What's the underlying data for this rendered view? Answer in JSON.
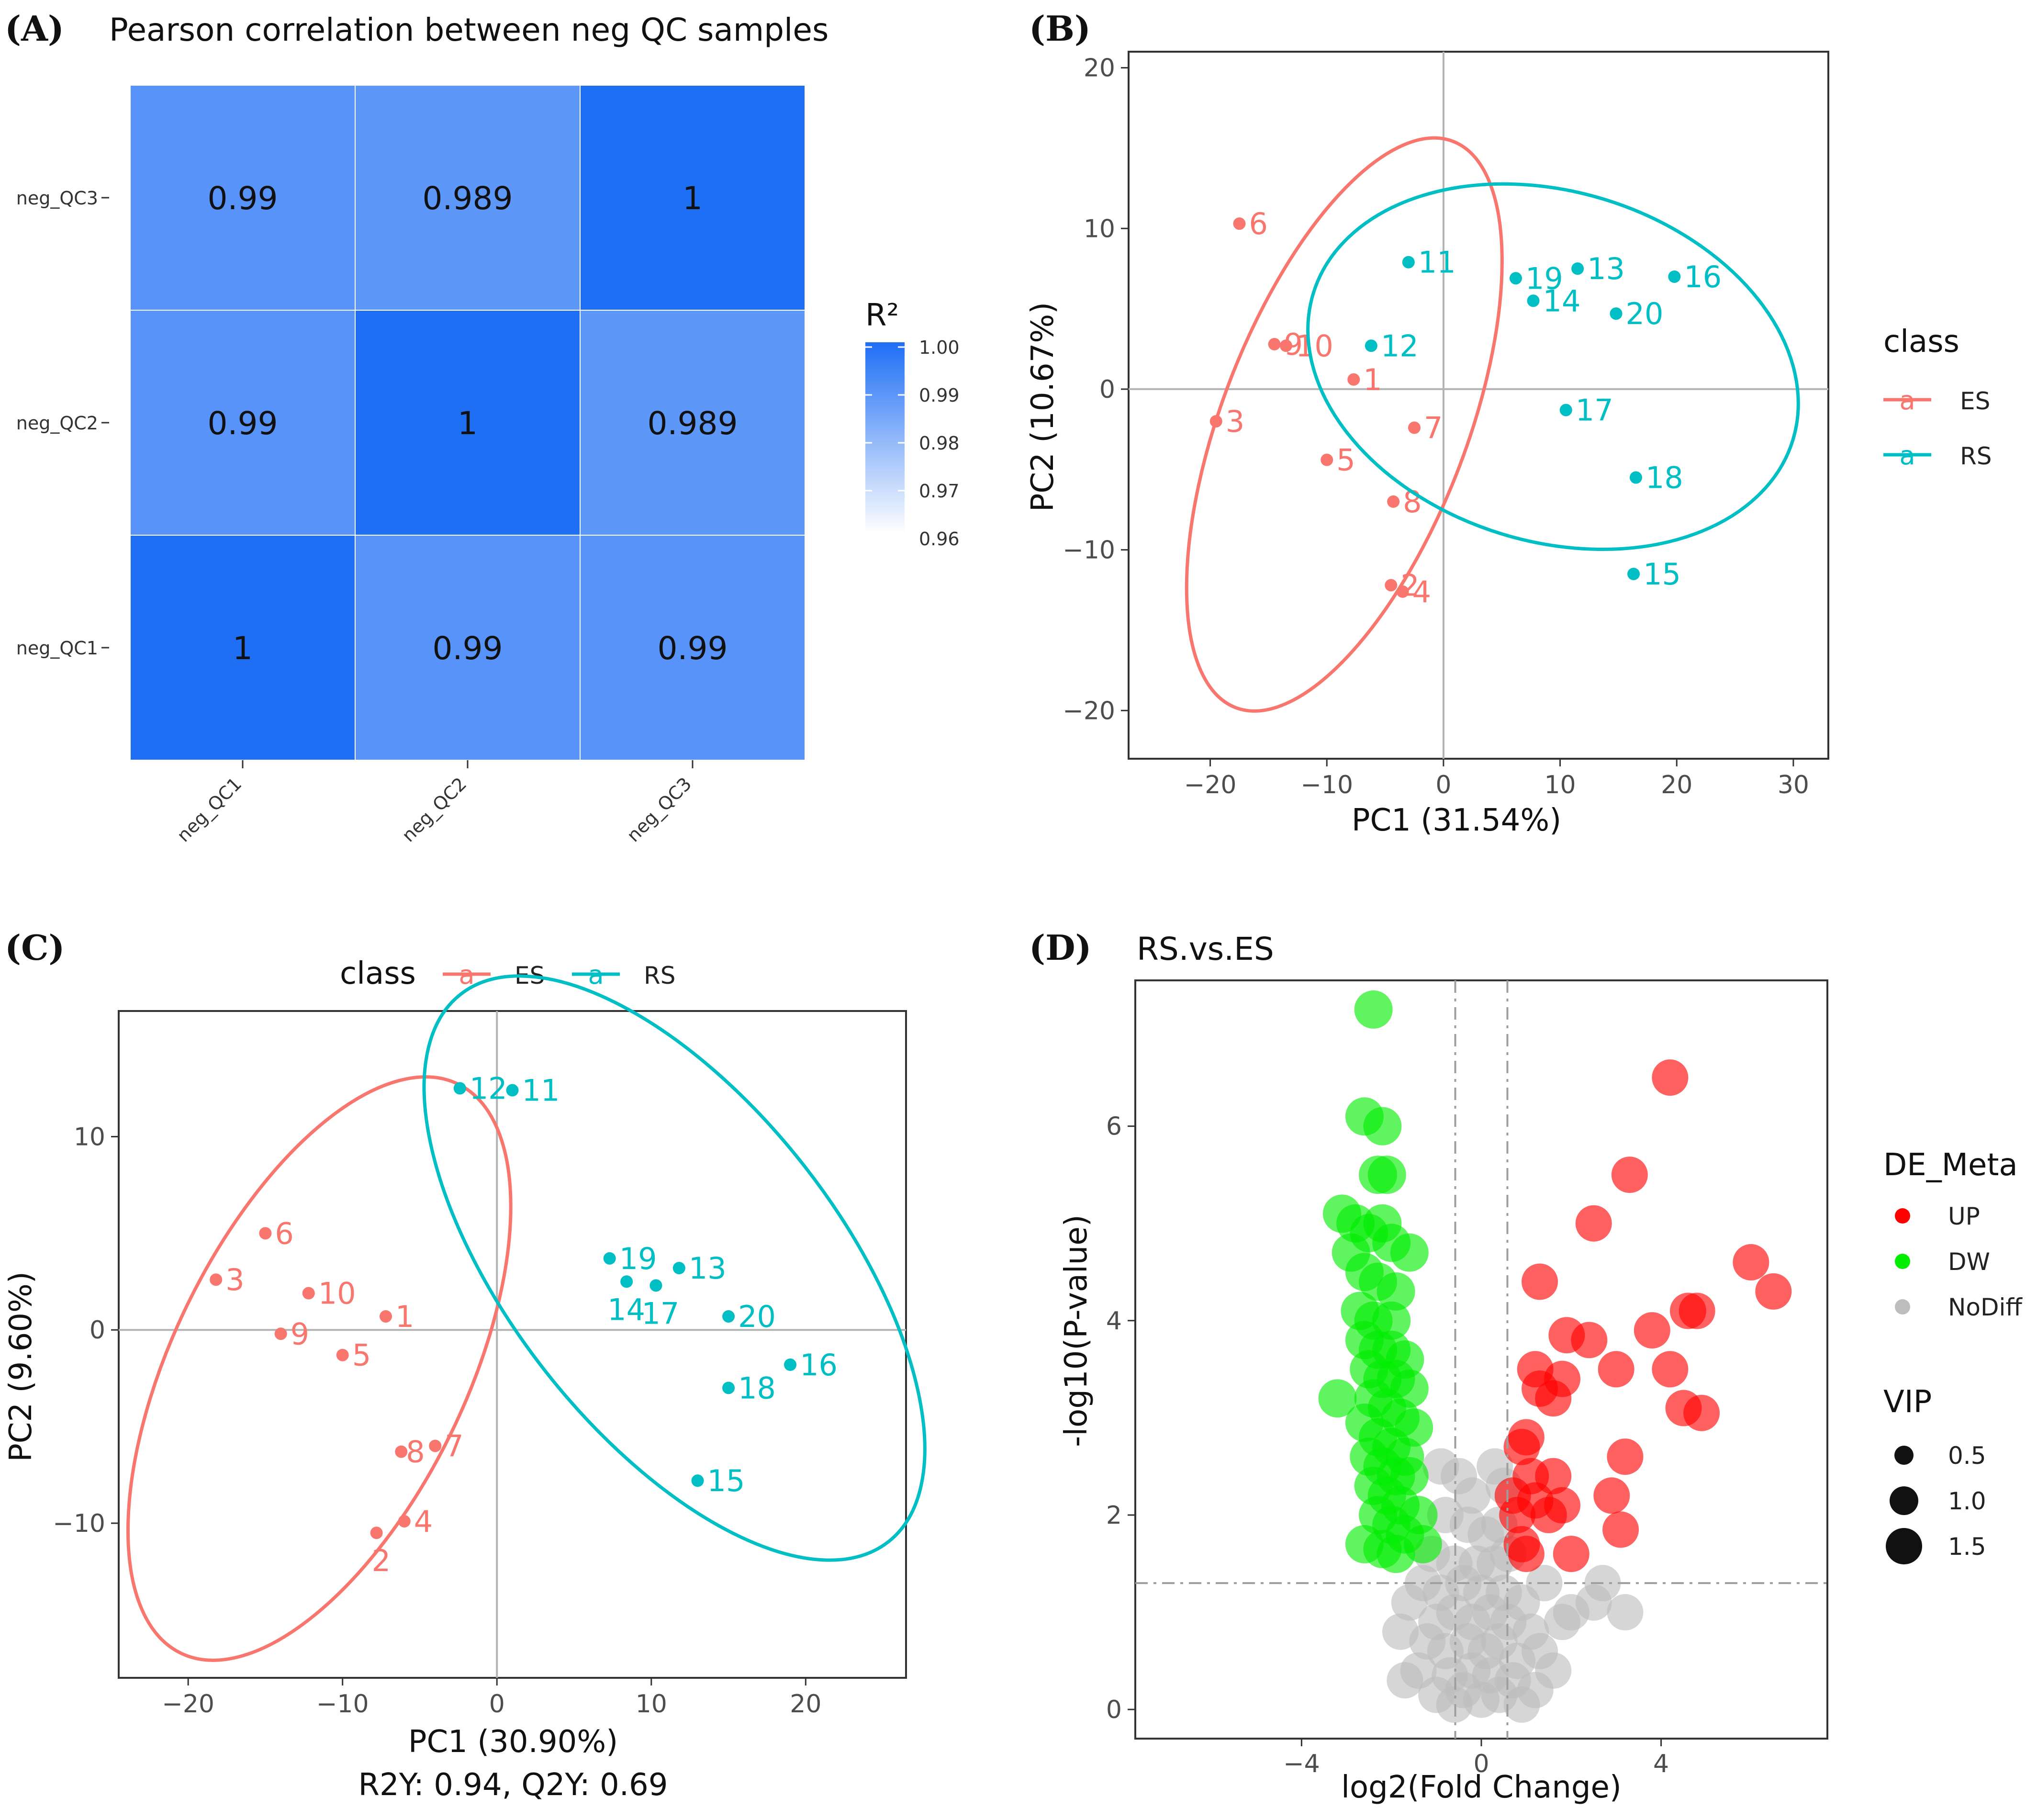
{
  "chart_data": [
    {
      "panel": "(A)",
      "type": "heatmap",
      "title": "Pearson correlation between neg QC samples",
      "rows": [
        "neg_QC1",
        "neg_QC2",
        "neg_QC3"
      ],
      "cols": [
        "neg_QC1",
        "neg_QC2",
        "neg_QC3"
      ],
      "values": [
        [
          1,
          0.99,
          0.99
        ],
        [
          0.99,
          1,
          0.989
        ],
        [
          0.99,
          0.989,
          1
        ]
      ],
      "value_labels": [
        [
          "1",
          "0.99",
          "0.99"
        ],
        [
          "0.99",
          "1",
          "0.989"
        ],
        [
          "0.99",
          "0.989",
          "1"
        ]
      ],
      "colorbar": {
        "title": "R²",
        "ticks": [
          "1.00",
          "0.99",
          "0.98",
          "0.97",
          "0.96"
        ],
        "low": "#ffffff",
        "high": "#1f6ff5"
      }
    },
    {
      "panel": "(B)",
      "type": "scatter",
      "xlabel": "PC1 (31.54%)",
      "ylabel": "PC2 (10.67%)",
      "xlim": [
        -27,
        33
      ],
      "ylim": [
        -23,
        21
      ],
      "xticks": [
        -20,
        -10,
        0,
        10,
        20,
        30
      ],
      "yticks": [
        -20,
        -10,
        0,
        10,
        20
      ],
      "legend": {
        "title": "class",
        "entries": [
          "ES",
          "RS"
        ],
        "glyph": "a"
      },
      "series": [
        {
          "name": "ES",
          "color": "#f8766d",
          "points": [
            {
              "x": -17.5,
              "y": 10.3,
              "label": "6"
            },
            {
              "x": -14.5,
              "y": 2.8,
              "label": "9"
            },
            {
              "x": -13.5,
              "y": 2.7,
              "label": "10"
            },
            {
              "x": -7.7,
              "y": 0.6,
              "label": "1"
            },
            {
              "x": -19.5,
              "y": -2.0,
              "label": "3"
            },
            {
              "x": -10,
              "y": -4.4,
              "label": "5"
            },
            {
              "x": -2.5,
              "y": -2.4,
              "label": "7"
            },
            {
              "x": -4.3,
              "y": -7.0,
              "label": "8"
            },
            {
              "x": -4.5,
              "y": -12.2,
              "label": "2"
            },
            {
              "x": -3.5,
              "y": -12.6,
              "label": "4"
            }
          ],
          "ellipse": {
            "cx": -8.5,
            "cy": -2.2,
            "rx": 26,
            "ry": 10.5,
            "angle_deg": 69
          }
        },
        {
          "name": "RS",
          "color": "#00bfc4",
          "points": [
            {
              "x": -3,
              "y": 7.9,
              "label": "11"
            },
            {
              "x": -6.2,
              "y": 2.7,
              "label": "12"
            },
            {
              "x": 6.2,
              "y": 6.9,
              "label": "19"
            },
            {
              "x": 11.5,
              "y": 7.5,
              "label": "13"
            },
            {
              "x": 7.7,
              "y": 5.5,
              "label": "14"
            },
            {
              "x": 19.8,
              "y": 7.0,
              "label": "16"
            },
            {
              "x": 14.8,
              "y": 4.7,
              "label": "20"
            },
            {
              "x": 10.5,
              "y": -1.3,
              "label": "17"
            },
            {
              "x": 16.5,
              "y": -5.5,
              "label": "18"
            },
            {
              "x": 16.3,
              "y": -11.5,
              "label": "15"
            }
          ],
          "ellipse": {
            "cx": 9.4,
            "cy": 1.4,
            "rx": 21.5,
            "ry": 15.0,
            "angle_deg": -17
          }
        }
      ]
    },
    {
      "panel": "(C)",
      "type": "scatter",
      "xlabel": "PC1 (30.90%)",
      "subtitle": "R2Y: 0.94, Q2Y: 0.69",
      "ylabel": "PC2 (9.60%)",
      "xlim": [
        -24.5,
        26.5
      ],
      "ylim": [
        -18,
        16.5
      ],
      "xticks": [
        -20,
        -10,
        0,
        10,
        20
      ],
      "yticks": [
        -10,
        0,
        10
      ],
      "legend": {
        "title": "class",
        "entries": [
          "ES",
          "RS"
        ],
        "glyph": "a",
        "position": "top"
      },
      "series": [
        {
          "name": "ES",
          "color": "#f8766d",
          "points": [
            {
              "x": -15,
              "y": 5.0,
              "label": "6"
            },
            {
              "x": -18.2,
              "y": 2.6,
              "label": "3"
            },
            {
              "x": -12.2,
              "y": 1.9,
              "label": "10"
            },
            {
              "x": -7.2,
              "y": 0.7,
              "label": "1"
            },
            {
              "x": -14,
              "y": -0.2,
              "label": "9"
            },
            {
              "x": -10,
              "y": -1.3,
              "label": "5"
            },
            {
              "x": -4,
              "y": -6.0,
              "label": "7"
            },
            {
              "x": -6.2,
              "y": -6.3,
              "label": "8"
            },
            {
              "x": -6.0,
              "y": -9.9,
              "label": "4"
            },
            {
              "x": -7.8,
              "y": -10.5,
              "label": "2"
            }
          ],
          "ellipse": {
            "cx": -11.5,
            "cy": -2.0,
            "rx": 20.5,
            "ry": 9.5,
            "angle_deg": 64
          }
        },
        {
          "name": "RS",
          "color": "#00bfc4",
          "points": [
            {
              "x": -2.4,
              "y": 12.5,
              "label": "12"
            },
            {
              "x": 1.0,
              "y": 12.4,
              "label": "11"
            },
            {
              "x": 7.3,
              "y": 3.7,
              "label": "19"
            },
            {
              "x": 11.8,
              "y": 3.2,
              "label": "13"
            },
            {
              "x": 8.4,
              "y": 2.5,
              "label": "14"
            },
            {
              "x": 10.3,
              "y": 2.3,
              "label": "17"
            },
            {
              "x": 15.0,
              "y": 0.7,
              "label": "20"
            },
            {
              "x": 19.0,
              "y": -1.8,
              "label": "16"
            },
            {
              "x": 15.0,
              "y": -3.0,
              "label": "18"
            },
            {
              "x": 13.0,
              "y": -7.8,
              "label": "15"
            }
          ],
          "ellipse": {
            "cx": 11.5,
            "cy": 3.2,
            "rx": 22.5,
            "ry": 10.7,
            "angle_deg": -52
          }
        }
      ]
    },
    {
      "panel": "(D)",
      "type": "scatter",
      "title": "RS.vs.ES",
      "xlabel": "log2(Fold Change)",
      "ylabel": "-log10(P-value)",
      "xlim": [
        -7.7,
        7.7
      ],
      "ylim": [
        -0.3,
        7.5
      ],
      "xticks": [
        -4,
        0,
        4
      ],
      "yticks": [
        0,
        2,
        4,
        6
      ],
      "thresholds": {
        "fc": [
          -0.58,
          0.58
        ],
        "p": 1.3
      },
      "legend_color": {
        "title": "DE_Meta",
        "entries": [
          "UP",
          "DW",
          "NoDiff"
        ],
        "colors": [
          "#ff0000",
          "#00ee00",
          "#bdbdbd"
        ]
      },
      "legend_size": {
        "title": "VIP",
        "entries": [
          "0.5",
          "1.0",
          "1.5"
        ]
      },
      "points_up": [
        [
          4.2,
          6.5
        ],
        [
          3.3,
          5.5
        ],
        [
          2.5,
          5.0
        ],
        [
          6.0,
          4.6
        ],
        [
          6.5,
          4.3
        ],
        [
          4.6,
          4.1
        ],
        [
          4.8,
          4.1
        ],
        [
          1.3,
          4.4
        ],
        [
          3.8,
          3.9
        ],
        [
          1.9,
          3.85
        ],
        [
          2.4,
          3.8
        ],
        [
          1.2,
          3.5
        ],
        [
          3.0,
          3.5
        ],
        [
          4.2,
          3.5
        ],
        [
          1.8,
          3.4
        ],
        [
          1.3,
          3.3
        ],
        [
          1.6,
          3.2
        ],
        [
          4.5,
          3.1
        ],
        [
          4.9,
          3.05
        ],
        [
          1.0,
          2.8
        ],
        [
          0.9,
          2.7
        ],
        [
          3.2,
          2.6
        ],
        [
          1.1,
          2.4
        ],
        [
          1.6,
          2.4
        ],
        [
          2.9,
          2.2
        ],
        [
          0.7,
          2.2
        ],
        [
          1.2,
          2.15
        ],
        [
          1.8,
          2.1
        ],
        [
          1.5,
          2.0
        ],
        [
          0.8,
          2.0
        ],
        [
          3.1,
          1.85
        ],
        [
          0.9,
          1.7
        ],
        [
          1.0,
          1.6
        ],
        [
          2.0,
          1.6
        ]
      ],
      "points_dw": [
        [
          -2.4,
          7.2
        ],
        [
          -2.6,
          6.1
        ],
        [
          -2.2,
          6.0
        ],
        [
          -2.3,
          5.5
        ],
        [
          -2.1,
          5.5
        ],
        [
          -3.1,
          5.1
        ],
        [
          -2.8,
          5.0
        ],
        [
          -2.2,
          5.0
        ],
        [
          -2.5,
          4.9
        ],
        [
          -2.0,
          4.8
        ],
        [
          -2.9,
          4.7
        ],
        [
          -1.6,
          4.7
        ],
        [
          -2.6,
          4.5
        ],
        [
          -2.3,
          4.4
        ],
        [
          -1.9,
          4.3
        ],
        [
          -2.7,
          4.1
        ],
        [
          -2.4,
          4.0
        ],
        [
          -2.0,
          4.0
        ],
        [
          -2.6,
          3.8
        ],
        [
          -2.3,
          3.7
        ],
        [
          -2.0,
          3.7
        ],
        [
          -1.7,
          3.6
        ],
        [
          -2.5,
          3.5
        ],
        [
          -2.2,
          3.4
        ],
        [
          -1.9,
          3.4
        ],
        [
          -1.6,
          3.3
        ],
        [
          -3.2,
          3.2
        ],
        [
          -2.4,
          3.2
        ],
        [
          -2.1,
          3.1
        ],
        [
          -1.8,
          3.0
        ],
        [
          -2.6,
          2.95
        ],
        [
          -1.5,
          2.9
        ],
        [
          -2.3,
          2.8
        ],
        [
          -2.0,
          2.7
        ],
        [
          -1.7,
          2.6
        ],
        [
          -2.5,
          2.6
        ],
        [
          -2.2,
          2.5
        ],
        [
          -1.9,
          2.4
        ],
        [
          -1.6,
          2.4
        ],
        [
          -2.4,
          2.3
        ],
        [
          -2.1,
          2.2
        ],
        [
          -1.8,
          2.1
        ],
        [
          -1.4,
          2.0
        ],
        [
          -2.3,
          2.0
        ],
        [
          -2.0,
          1.9
        ],
        [
          -1.7,
          1.8
        ],
        [
          -1.3,
          1.7
        ],
        [
          -2.6,
          1.7
        ],
        [
          -2.2,
          1.65
        ],
        [
          -1.9,
          1.6
        ]
      ],
      "points_nodiff": [
        [
          -0.9,
          2.5
        ],
        [
          -0.5,
          2.4
        ],
        [
          -0.2,
          2.2
        ],
        [
          0.3,
          2.5
        ],
        [
          0.5,
          2.3
        ],
        [
          -0.8,
          2.0
        ],
        [
          -0.3,
          1.9
        ],
        [
          0.1,
          1.8
        ],
        [
          0.4,
          1.9
        ],
        [
          -1.1,
          1.6
        ],
        [
          -0.6,
          1.5
        ],
        [
          -0.1,
          1.5
        ],
        [
          0.3,
          1.5
        ],
        [
          0.6,
          1.6
        ],
        [
          -1.3,
          1.3
        ],
        [
          -0.9,
          1.2
        ],
        [
          -0.4,
          1.3
        ],
        [
          0.0,
          1.2
        ],
        [
          0.5,
          1.2
        ],
        [
          0.9,
          1.1
        ],
        [
          1.4,
          1.3
        ],
        [
          -1.6,
          1.1
        ],
        [
          -1.0,
          0.9
        ],
        [
          -0.6,
          1.0
        ],
        [
          -0.2,
          0.9
        ],
        [
          0.2,
          1.0
        ],
        [
          0.6,
          0.9
        ],
        [
          1.1,
          0.8
        ],
        [
          1.8,
          0.9
        ],
        [
          2.5,
          1.1
        ],
        [
          -1.8,
          0.8
        ],
        [
          -1.2,
          0.7
        ],
        [
          -0.8,
          0.6
        ],
        [
          -0.3,
          0.7
        ],
        [
          0.1,
          0.6
        ],
        [
          0.4,
          0.7
        ],
        [
          0.8,
          0.5
        ],
        [
          1.3,
          0.6
        ],
        [
          2.0,
          1.0
        ],
        [
          -1.4,
          0.4
        ],
        [
          -0.7,
          0.35
        ],
        [
          -0.2,
          0.4
        ],
        [
          0.2,
          0.35
        ],
        [
          0.7,
          0.3
        ],
        [
          1.2,
          0.2
        ],
        [
          -1.0,
          0.15
        ],
        [
          -0.4,
          0.2
        ],
        [
          0.0,
          0.1
        ],
        [
          0.4,
          0.15
        ],
        [
          0.9,
          0.05
        ],
        [
          -0.6,
          0.05
        ],
        [
          1.6,
          0.4
        ],
        [
          -1.7,
          0.3
        ],
        [
          2.7,
          1.3
        ],
        [
          3.2,
          1.0
        ]
      ]
    }
  ]
}
